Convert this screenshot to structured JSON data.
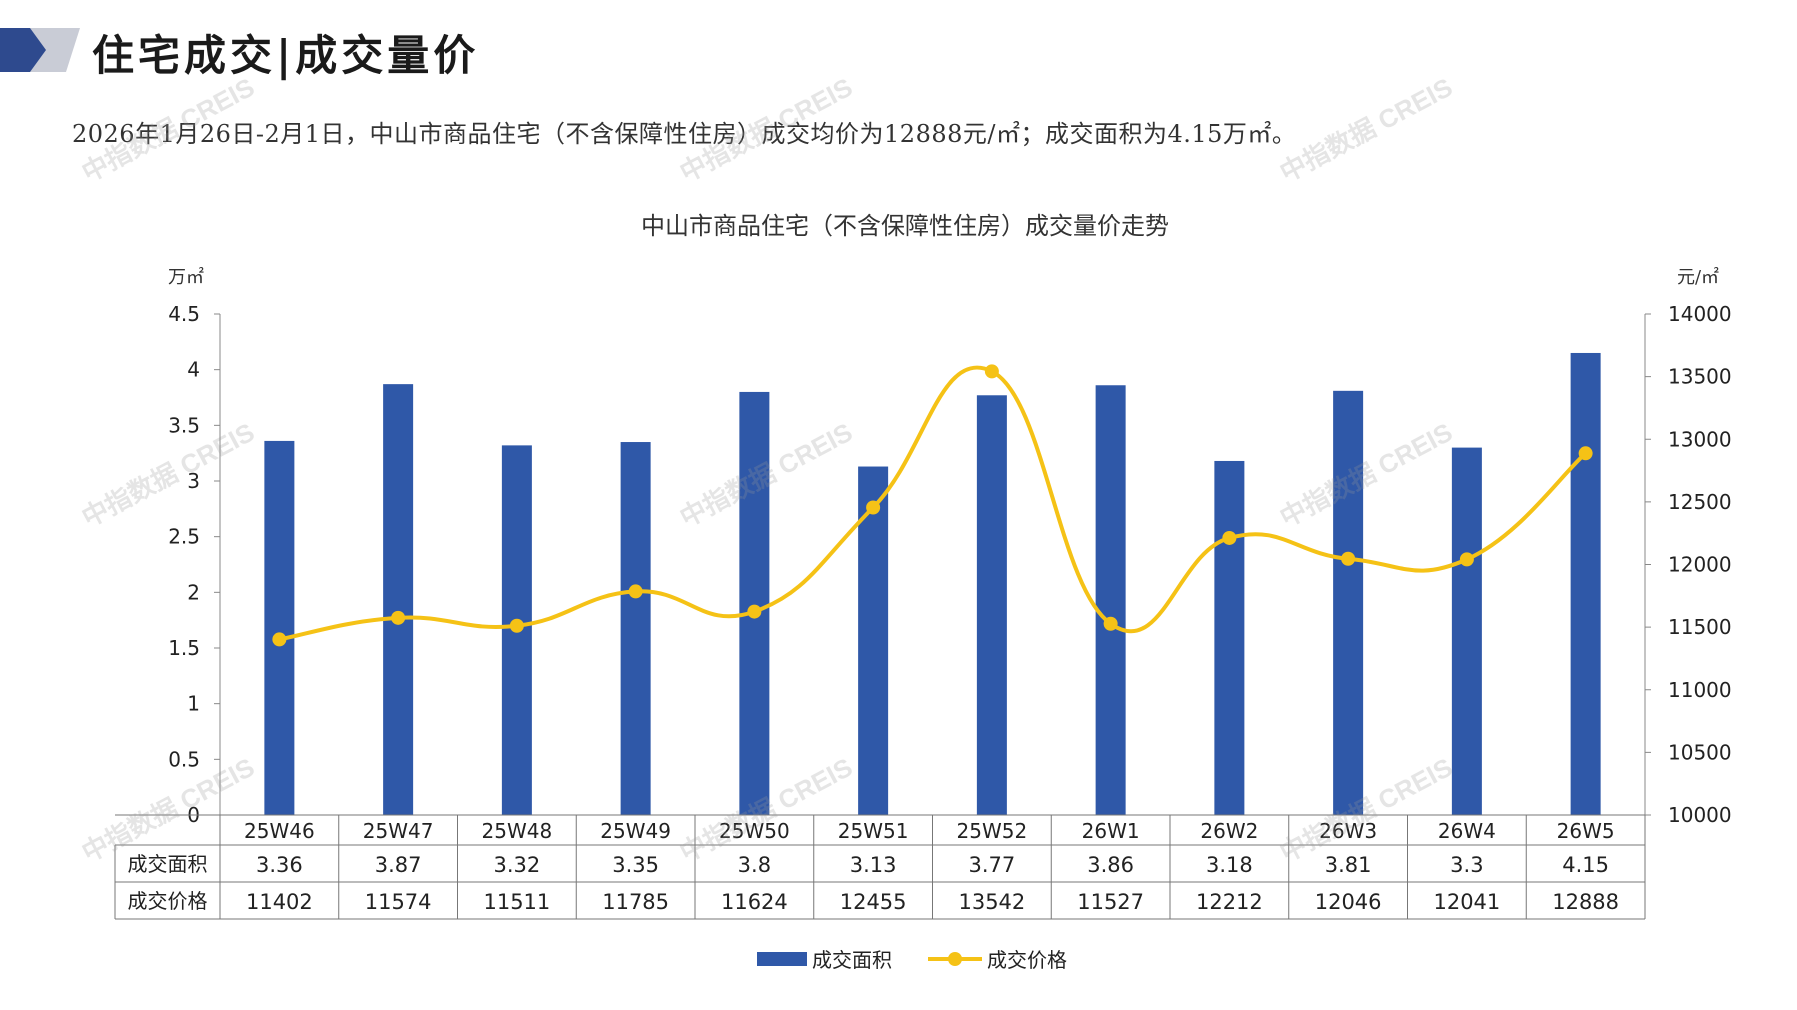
{
  "page": {
    "title": "住宅成交|成交量价",
    "summary": "2026年1月26日-2月1日，中山市商品住宅（不含保障性住房）成交均价为12888元/㎡；成交面积为4.15万㎡。",
    "watermark": "中指数据 CREIS"
  },
  "colors": {
    "bar": "#2F58A8",
    "line": "#F5C216",
    "logo_dark": "#2E4A8E",
    "logo_light": "#C9CCD6"
  },
  "chart_data": {
    "type": "bar+line",
    "title": "中山市商品住宅（不含保障性住房）成交量价走势",
    "y_left_unit": "万㎡",
    "y_right_unit": "元/㎡",
    "y_left_ticks": [
      "0",
      "0.5",
      "1",
      "1.5",
      "2",
      "2.5",
      "3",
      "3.5",
      "4",
      "4.5"
    ],
    "y_right_ticks": [
      "10000",
      "10500",
      "11000",
      "11500",
      "12000",
      "12500",
      "13000",
      "13500",
      "14000"
    ],
    "ylim_left": [
      0,
      4.5
    ],
    "ylim_right": [
      10000,
      14000
    ],
    "categories": [
      "25W46",
      "25W47",
      "25W48",
      "25W49",
      "25W50",
      "25W51",
      "25W52",
      "26W1",
      "26W2",
      "26W3",
      "26W4",
      "26W5"
    ],
    "series": [
      {
        "name": "成交面积",
        "type": "bar",
        "axis": "left",
        "values": [
          3.36,
          3.87,
          3.32,
          3.35,
          3.8,
          3.13,
          3.77,
          3.86,
          3.18,
          3.81,
          3.3,
          4.15
        ],
        "labels": [
          "3.36",
          "3.87",
          "3.32",
          "3.35",
          "3.8",
          "3.13",
          "3.77",
          "3.86",
          "3.18",
          "3.81",
          "3.3",
          "4.15"
        ]
      },
      {
        "name": "成交价格",
        "type": "line",
        "axis": "right",
        "values": [
          11402,
          11574,
          11511,
          11785,
          11624,
          12455,
          13542,
          11527,
          12212,
          12046,
          12041,
          12888
        ],
        "labels": [
          "11402",
          "11574",
          "11511",
          "11785",
          "11624",
          "12455",
          "13542",
          "11527",
          "12212",
          "12046",
          "12041",
          "12888"
        ]
      }
    ]
  }
}
